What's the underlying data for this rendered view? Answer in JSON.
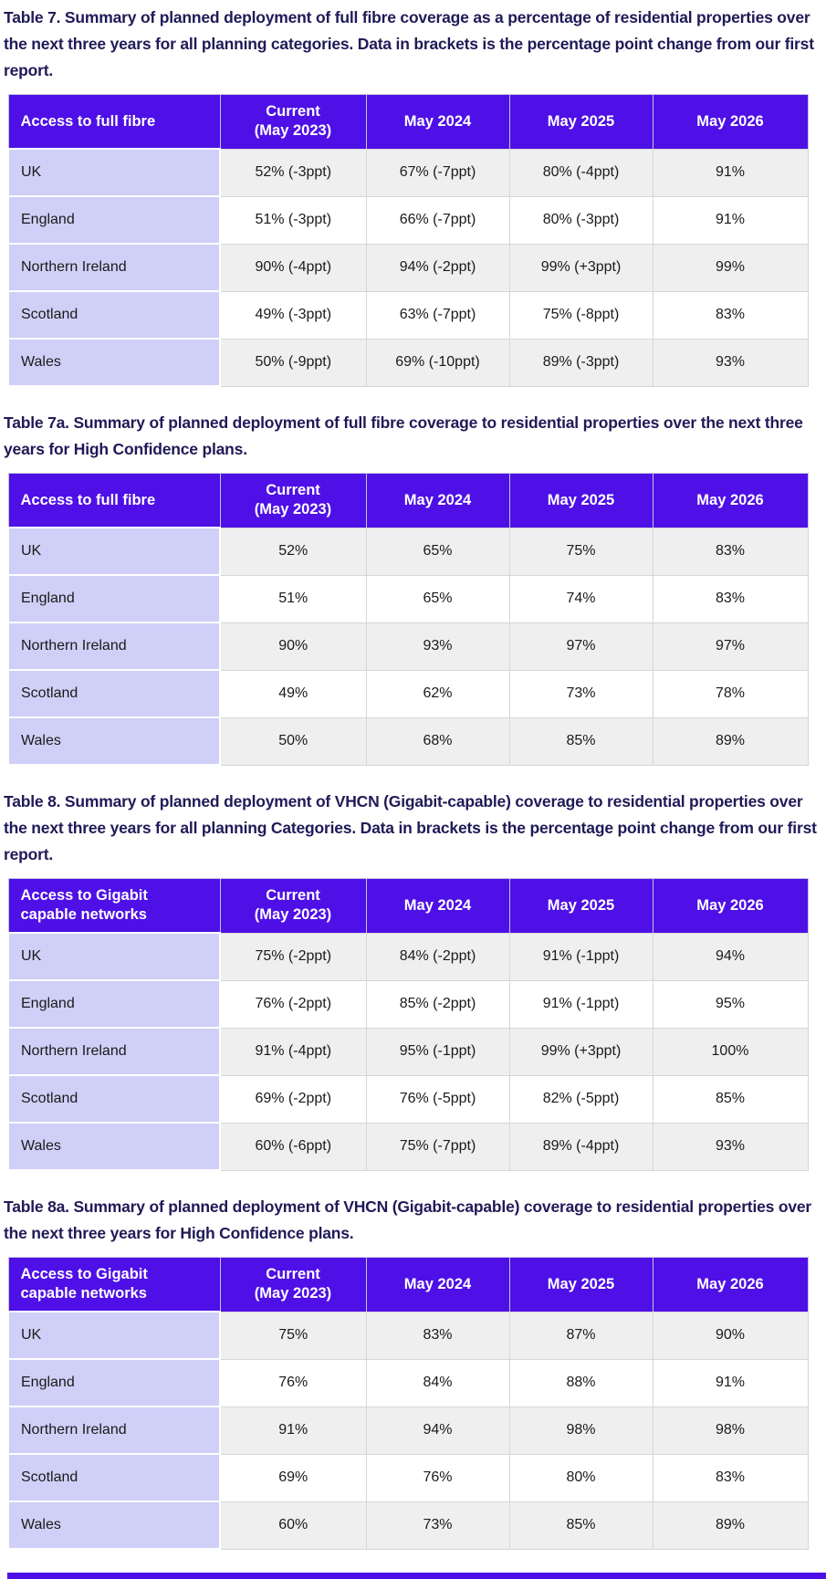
{
  "colors": {
    "header_bg": "#4E10E6",
    "header_text": "#FFFFFF",
    "region_col_bg": "#D0CFF7",
    "stripe_row_bg": "#F0EFEF",
    "title_text": "#201A57",
    "grid_line": "#D6D6D6"
  },
  "tables": [
    {
      "name": "Table 7",
      "title": "Table 7. Summary of planned deployment of full fibre coverage as a percentage of residential properties over the next three years for all planning categories. Data in brackets is the percentage point change from our first report.",
      "columns": [
        "Access to full fibre",
        "Current\n(May 2023)",
        "May 2024",
        "May 2025",
        "May 2026"
      ],
      "rows": [
        [
          "UK",
          "52% (-3ppt)",
          "67% (-7ppt)",
          "80% (-4ppt)",
          "91%"
        ],
        [
          "England",
          "51% (-3ppt)",
          "66% (-7ppt)",
          "80% (-3ppt)",
          "91%"
        ],
        [
          "Northern Ireland",
          "90% (-4ppt)",
          "94% (-2ppt)",
          "99% (+3ppt)",
          "99%"
        ],
        [
          "Scotland",
          "49% (-3ppt)",
          "63% (-7ppt)",
          "75% (-8ppt)",
          "83%"
        ],
        [
          "Wales",
          "50% (-9ppt)",
          "69% (-10ppt)",
          "89% (-3ppt)",
          "93%"
        ]
      ]
    },
    {
      "name": "Table 7a",
      "title": "Table 7a. Summary of planned deployment of full fibre coverage to residential properties over the next three years for High Confidence plans.",
      "columns": [
        "Access to full fibre",
        "Current\n(May 2023)",
        "May 2024",
        "May 2025",
        "May 2026"
      ],
      "rows": [
        [
          "UK",
          "52%",
          "65%",
          "75%",
          "83%"
        ],
        [
          "England",
          "51%",
          "65%",
          "74%",
          "83%"
        ],
        [
          "Northern Ireland",
          "90%",
          "93%",
          "97%",
          "97%"
        ],
        [
          "Scotland",
          "49%",
          "62%",
          "73%",
          "78%"
        ],
        [
          "Wales",
          "50%",
          "68%",
          "85%",
          "89%"
        ]
      ]
    },
    {
      "name": "Table 8",
      "title": "Table 8. Summary of planned deployment of VHCN (Gigabit-capable) coverage to residential properties over the next three years for all planning Categories. Data in brackets is the percentage point change from our first report.",
      "columns": [
        "Access to Gigabit\ncapable networks",
        "Current\n(May 2023)",
        "May 2024",
        "May 2025",
        "May 2026"
      ],
      "rows": [
        [
          "UK",
          "75% (-2ppt)",
          "84% (-2ppt)",
          "91% (-1ppt)",
          "94%"
        ],
        [
          "England",
          "76% (-2ppt)",
          "85% (-2ppt)",
          "91% (-1ppt)",
          "95%"
        ],
        [
          "Northern Ireland",
          "91% (-4ppt)",
          "95% (-1ppt)",
          "99% (+3ppt)",
          "100%"
        ],
        [
          "Scotland",
          "69% (-2ppt)",
          "76% (-5ppt)",
          "82% (-5ppt)",
          "85%"
        ],
        [
          "Wales",
          "60% (-6ppt)",
          "75% (-7ppt)",
          "89% (-4ppt)",
          "93%"
        ]
      ]
    },
    {
      "name": "Table 8a",
      "title": "Table 8a. Summary of planned deployment of VHCN (Gigabit-capable) coverage to residential properties over the next three years for High Confidence plans.",
      "columns": [
        "Access to Gigabit\ncapable networks",
        "Current\n(May 2023)",
        "May 2024",
        "May 2025",
        "May 2026"
      ],
      "rows": [
        [
          "UK",
          "75%",
          "83%",
          "87%",
          "90%"
        ],
        [
          "England",
          "76%",
          "84%",
          "88%",
          "91%"
        ],
        [
          "Northern Ireland",
          "91%",
          "94%",
          "98%",
          "98%"
        ],
        [
          "Scotland",
          "69%",
          "76%",
          "80%",
          "83%"
        ],
        [
          "Wales",
          "60%",
          "73%",
          "85%",
          "89%"
        ]
      ]
    }
  ]
}
